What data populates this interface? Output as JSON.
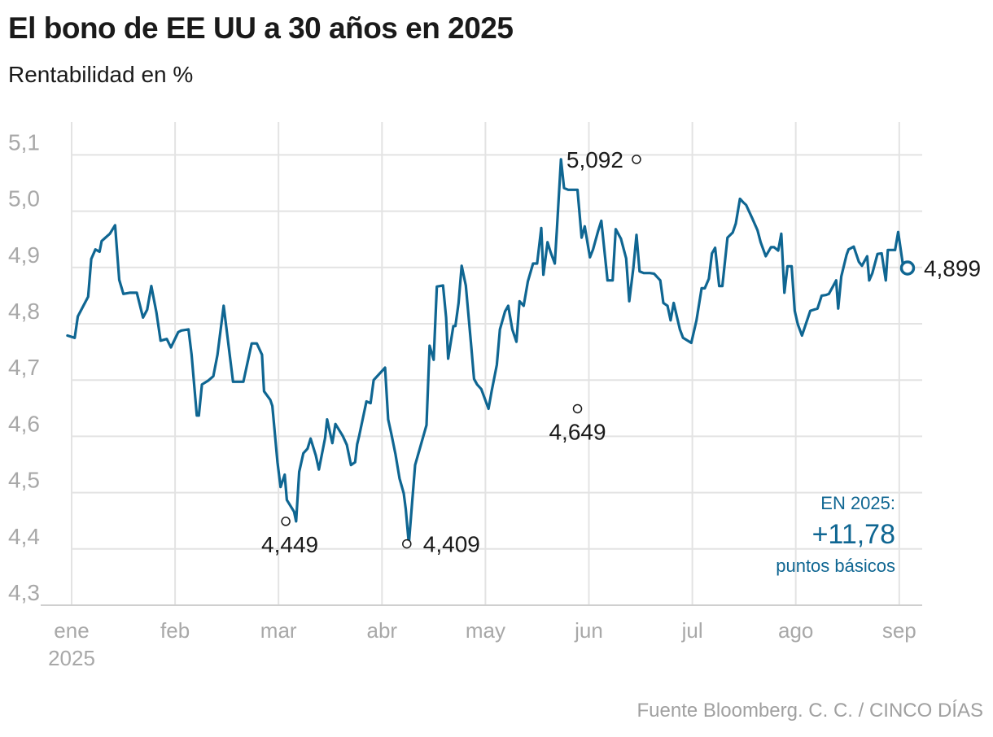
{
  "title": "El bono de EE UU a 30 años en 2025",
  "subtitle": "Rentabilidad en %",
  "source": "Fuente Bloomberg. C. C. / CINCO DÍAS",
  "colors": {
    "line": "#0f6692",
    "grid": "#e3e3e3",
    "tick": "#a8a8a8",
    "text": "#1a1a1a"
  },
  "chart_data": {
    "type": "line",
    "title": "El bono de EE UU a 30 años en 2025",
    "subtitle": "Rentabilidad en %",
    "x_unit": "months since 2025-01-01",
    "ylim": [
      4.3,
      5.1
    ],
    "yticks": [
      "5,1",
      "5,0",
      "4,9",
      "4,8",
      "4,7",
      "4,6",
      "4,5",
      "4,4",
      "4,3"
    ],
    "ytick_values": [
      5.1,
      5.0,
      4.9,
      4.8,
      4.7,
      4.6,
      4.5,
      4.4,
      4.3
    ],
    "xticks": [
      "ene",
      "feb",
      "mar",
      "abr",
      "may",
      "jun",
      "jul",
      "ago",
      "sep"
    ],
    "xtick_values": [
      0,
      1,
      2,
      3,
      4,
      5,
      6,
      7,
      8
    ],
    "xtick_sublabel": "2025",
    "grid": true,
    "series": [
      {
        "color": "#0f6692",
        "x": [
          -0.04,
          0.03,
          0.06,
          0.16,
          0.19,
          0.23,
          0.27,
          0.29,
          0.37,
          0.42,
          0.46,
          0.5,
          0.56,
          0.58,
          0.63,
          0.69,
          0.73,
          0.77,
          0.82,
          0.86,
          0.92,
          0.96,
          1.03,
          1.06,
          1.13,
          1.16,
          1.21,
          1.23,
          1.26,
          1.32,
          1.37,
          1.41,
          1.47,
          1.56,
          1.59,
          1.62,
          1.66,
          1.74,
          1.78,
          1.79,
          1.84,
          1.86,
          1.92,
          1.94,
          1.99,
          2.02,
          2.06,
          2.08,
          2.15,
          2.17,
          2.2,
          2.24,
          2.28,
          2.31,
          2.36,
          2.39,
          2.45,
          2.47,
          2.52,
          2.55,
          2.62,
          2.66,
          2.7,
          2.74,
          2.76,
          2.78,
          2.85,
          2.89,
          2.92,
          3.03,
          3.06,
          3.09,
          3.13,
          3.17,
          3.21,
          3.23,
          3.26,
          3.29,
          3.32,
          3.43,
          3.46,
          3.5,
          3.53,
          3.59,
          3.62,
          3.64,
          3.69,
          3.71,
          3.74,
          3.77,
          3.81,
          3.86,
          3.89,
          3.92,
          3.96,
          4.03,
          4.06,
          4.11,
          4.14,
          4.19,
          4.22,
          4.26,
          4.3,
          4.33,
          4.37,
          4.41,
          4.46,
          4.5,
          4.54,
          4.56,
          4.6,
          4.63,
          4.67,
          4.69,
          4.73,
          4.76,
          4.8,
          4.82,
          4.86,
          4.89,
          4.93,
          4.96,
          5.01,
          5.04,
          5.09,
          5.12,
          5.18,
          5.23,
          5.26,
          5.31,
          5.36,
          5.39,
          5.43,
          5.46,
          5.49,
          5.53,
          5.59,
          5.63,
          5.69,
          5.72,
          5.76,
          5.79,
          5.82,
          5.88,
          5.91,
          5.99,
          6.04,
          6.09,
          6.12,
          6.16,
          6.19,
          6.22,
          6.26,
          6.29,
          6.34,
          6.39,
          6.42,
          6.46,
          6.49,
          6.52,
          6.58,
          6.63,
          6.66,
          6.71,
          6.76,
          6.79,
          6.83,
          6.86,
          6.89,
          6.92,
          6.96,
          6.99,
          7.02,
          7.06,
          7.14,
          7.21,
          7.25,
          7.29,
          7.32,
          7.39,
          7.41,
          7.44,
          7.49,
          7.51,
          7.56,
          7.61,
          7.64,
          7.69,
          7.71,
          7.74,
          7.79,
          7.83,
          7.87,
          7.89,
          7.94,
          7.96,
          7.99,
          8.04
        ],
        "y": [
          4.779,
          4.775,
          4.813,
          4.848,
          4.915,
          4.932,
          4.928,
          4.947,
          4.96,
          4.975,
          4.878,
          4.853,
          4.855,
          4.855,
          4.855,
          4.811,
          4.825,
          4.867,
          4.82,
          4.77,
          4.773,
          4.758,
          4.785,
          4.788,
          4.79,
          4.745,
          4.637,
          4.637,
          4.692,
          4.699,
          4.707,
          4.745,
          4.832,
          4.697,
          4.697,
          4.697,
          4.697,
          4.765,
          4.765,
          4.765,
          4.745,
          4.68,
          4.665,
          4.654,
          4.554,
          4.51,
          4.532,
          4.487,
          4.466,
          4.449,
          4.537,
          4.57,
          4.578,
          4.596,
          4.566,
          4.541,
          4.597,
          4.63,
          4.588,
          4.622,
          4.601,
          4.585,
          4.549,
          4.554,
          4.586,
          4.601,
          4.662,
          4.659,
          4.7,
          4.722,
          4.63,
          4.605,
          4.569,
          4.525,
          4.499,
          4.471,
          4.409,
          4.48,
          4.549,
          4.62,
          4.761,
          4.736,
          4.866,
          4.868,
          4.811,
          4.738,
          4.796,
          4.796,
          4.837,
          4.903,
          4.868,
          4.766,
          4.702,
          4.692,
          4.684,
          4.649,
          4.68,
          4.727,
          4.79,
          4.822,
          4.832,
          4.79,
          4.768,
          4.84,
          4.832,
          4.875,
          4.907,
          4.907,
          4.97,
          4.887,
          4.945,
          4.927,
          4.907,
          4.965,
          5.092,
          5.041,
          5.038,
          5.038,
          5.038,
          5.038,
          4.953,
          4.973,
          4.918,
          4.932,
          4.965,
          4.983,
          4.877,
          4.877,
          4.968,
          4.951,
          4.916,
          4.84,
          4.9,
          4.958,
          4.893,
          4.89,
          4.89,
          4.889,
          4.877,
          4.837,
          4.832,
          4.806,
          4.837,
          4.79,
          4.775,
          4.766,
          4.806,
          4.863,
          4.863,
          4.88,
          4.925,
          4.935,
          4.867,
          4.867,
          4.953,
          4.962,
          4.978,
          5.022,
          5.016,
          5.011,
          4.987,
          4.966,
          4.945,
          4.92,
          4.936,
          4.936,
          4.93,
          4.96,
          4.855,
          4.902,
          4.902,
          4.823,
          4.799,
          4.779,
          4.823,
          4.827,
          4.85,
          4.851,
          4.853,
          4.877,
          4.827,
          4.884,
          4.922,
          4.932,
          4.937,
          4.91,
          4.903,
          4.92,
          4.877,
          4.89,
          4.924,
          4.925,
          4.877,
          4.931,
          4.931,
          4.931,
          4.963,
          4.899
        ]
      }
    ],
    "annotations": [
      {
        "x": 2.07,
        "y": 4.449,
        "label": "4,449",
        "pos": "below-left"
      },
      {
        "x": 3.24,
        "y": 4.409,
        "label": "4,409",
        "pos": "right"
      },
      {
        "x": 4.89,
        "y": 4.649,
        "label": "4,649",
        "pos": "below"
      },
      {
        "x": 5.46,
        "y": 5.092,
        "label": "5,092",
        "pos": "left"
      },
      {
        "x": 8.08,
        "y": 4.899,
        "label": "4,899",
        "pos": "right",
        "endpoint": true
      }
    ],
    "summary": {
      "label": "EN 2025:",
      "value": "+11,78",
      "unit": "puntos básicos"
    }
  }
}
